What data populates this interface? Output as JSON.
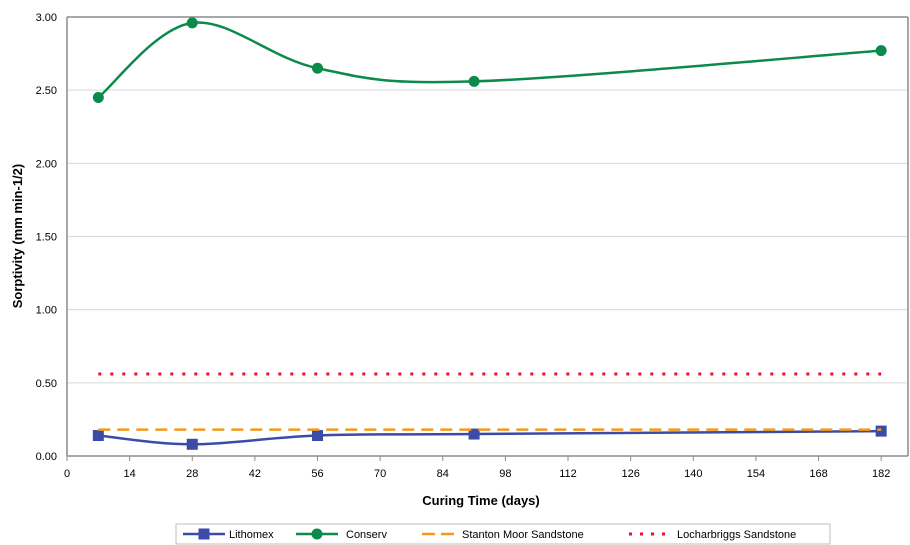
{
  "chart_data": {
    "type": "line",
    "xlabel": "Curing Time (days)",
    "ylabel": "Sorptivity (mm min-1/2)",
    "x_ticks": [
      "0",
      "14",
      "28",
      "42",
      "56",
      "70",
      "84",
      "98",
      "112",
      "126",
      "140",
      "154",
      "168",
      "182"
    ],
    "y_ticks": [
      "0.00",
      "0.50",
      "1.00",
      "1.50",
      "2.00",
      "2.50",
      "3.00"
    ],
    "xlim": [
      0,
      188
    ],
    "ylim": [
      0,
      3.0
    ],
    "grid": "horizontal",
    "legend_position": "bottom",
    "series": [
      {
        "name": "Lithomex",
        "style": "line-square",
        "color": "#3b4ba8",
        "x": [
          7,
          28,
          56,
          91,
          182
        ],
        "y": [
          0.14,
          0.08,
          0.14,
          0.15,
          0.17
        ]
      },
      {
        "name": "Conserv",
        "style": "line-circle",
        "color": "#0b8a4a",
        "x": [
          7,
          28,
          56,
          91,
          182
        ],
        "y": [
          2.45,
          2.96,
          2.65,
          2.56,
          2.77
        ]
      },
      {
        "name": "Stanton Moor Sandstone",
        "style": "dashed",
        "color": "#f39a1e",
        "x": [
          7,
          182
        ],
        "y": [
          0.18,
          0.18
        ]
      },
      {
        "name": "Locharbriggs Sandstone",
        "style": "dotted",
        "color": "#e8102a",
        "x": [
          7,
          182
        ],
        "y": [
          0.56,
          0.56
        ]
      }
    ]
  }
}
